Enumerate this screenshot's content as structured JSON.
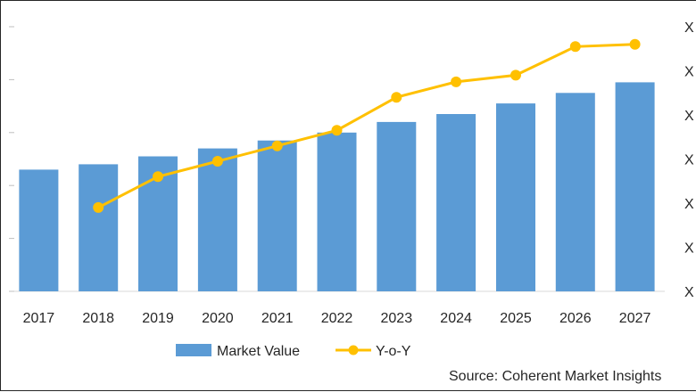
{
  "chart_data": {
    "type": "bar",
    "title": "",
    "xlabel": "",
    "ylabel": "",
    "categories": [
      "2017",
      "2018",
      "2019",
      "2020",
      "2021",
      "2022",
      "2023",
      "2024",
      "2025",
      "2026",
      "2027"
    ],
    "series": [
      {
        "name": "Market Value",
        "type": "bar",
        "axis": "left",
        "color": "#5B9BD5",
        "values": [
          2.3,
          2.4,
          2.55,
          2.7,
          2.85,
          3.0,
          3.2,
          3.35,
          3.55,
          3.75,
          3.95
        ]
      },
      {
        "name": "Y-o-Y",
        "type": "line",
        "axis": "right",
        "color": "#FFC000",
        "values": [
          null,
          1.9,
          2.6,
          2.95,
          3.3,
          3.65,
          4.4,
          4.75,
          4.9,
          5.55,
          5.6
        ]
      }
    ],
    "ylim": [
      0,
      5
    ],
    "y2lim": [
      0,
      6
    ],
    "left_ticks": [
      "",
      "",
      "",
      "",
      "",
      ""
    ],
    "right_ticks": [
      "X",
      "X",
      "X",
      "X",
      "X",
      "X",
      "X"
    ],
    "legend": [
      "Market Value",
      "Y-o-Y"
    ],
    "legend_position": "bottom"
  },
  "source": "Source: Coherent Market Insights"
}
